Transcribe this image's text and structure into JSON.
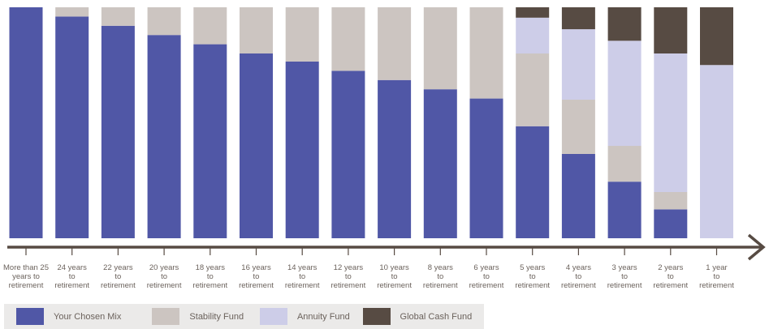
{
  "chart_data": {
    "type": "bar",
    "stacked": true,
    "categories": [
      [
        "More than 25",
        "years to",
        "retirement"
      ],
      [
        "24 years",
        "to",
        "retirement"
      ],
      [
        "22 years",
        "to",
        "retirement"
      ],
      [
        "20 years",
        "to",
        "retirement"
      ],
      [
        "18 years",
        "to",
        "retirement"
      ],
      [
        "16 years",
        "to",
        "retirement"
      ],
      [
        "14 years",
        "to",
        "retirement"
      ],
      [
        "12 years",
        "to",
        "retirement"
      ],
      [
        "10 years",
        "to",
        "retirement"
      ],
      [
        "8 years",
        "to",
        "retirement"
      ],
      [
        "6 years",
        "to",
        "retirement"
      ],
      [
        "5 years",
        "to",
        "retirement"
      ],
      [
        "4 years",
        "to",
        "retirement"
      ],
      [
        "3 years",
        "to",
        "retirement"
      ],
      [
        "2 years",
        "to",
        "retirement"
      ],
      [
        "1 year",
        "to",
        "retirement"
      ]
    ],
    "series": [
      {
        "name": "Your Chosen Mix",
        "color": "#5057a6",
        "values": [
          100,
          96,
          92,
          88,
          84,
          80,
          76.5,
          72.5,
          68.5,
          64.5,
          60.5,
          48.5,
          36.5,
          24.5,
          12.5,
          0
        ]
      },
      {
        "name": "Stability Fund",
        "color": "#ccc5c1",
        "values": [
          0,
          4,
          8,
          12,
          16,
          20,
          23.5,
          27.5,
          31.5,
          35.5,
          39.5,
          31.5,
          23.5,
          15.5,
          7.5,
          0
        ]
      },
      {
        "name": "Annuity Fund",
        "color": "#cdcde8",
        "values": [
          0,
          0,
          0,
          0,
          0,
          0,
          0,
          0,
          0,
          0,
          0,
          15.5,
          30.5,
          45.5,
          60,
          75
        ]
      },
      {
        "name": "Global Cash Fund",
        "color": "#574b43",
        "values": [
          0,
          0,
          0,
          0,
          0,
          0,
          0,
          0,
          0,
          0,
          0,
          4.5,
          9.5,
          14.5,
          20,
          25
        ]
      }
    ],
    "ylim": [
      0,
      100
    ],
    "grid": false,
    "legend_position": "bottom-left"
  },
  "axis_color": "#574b43"
}
